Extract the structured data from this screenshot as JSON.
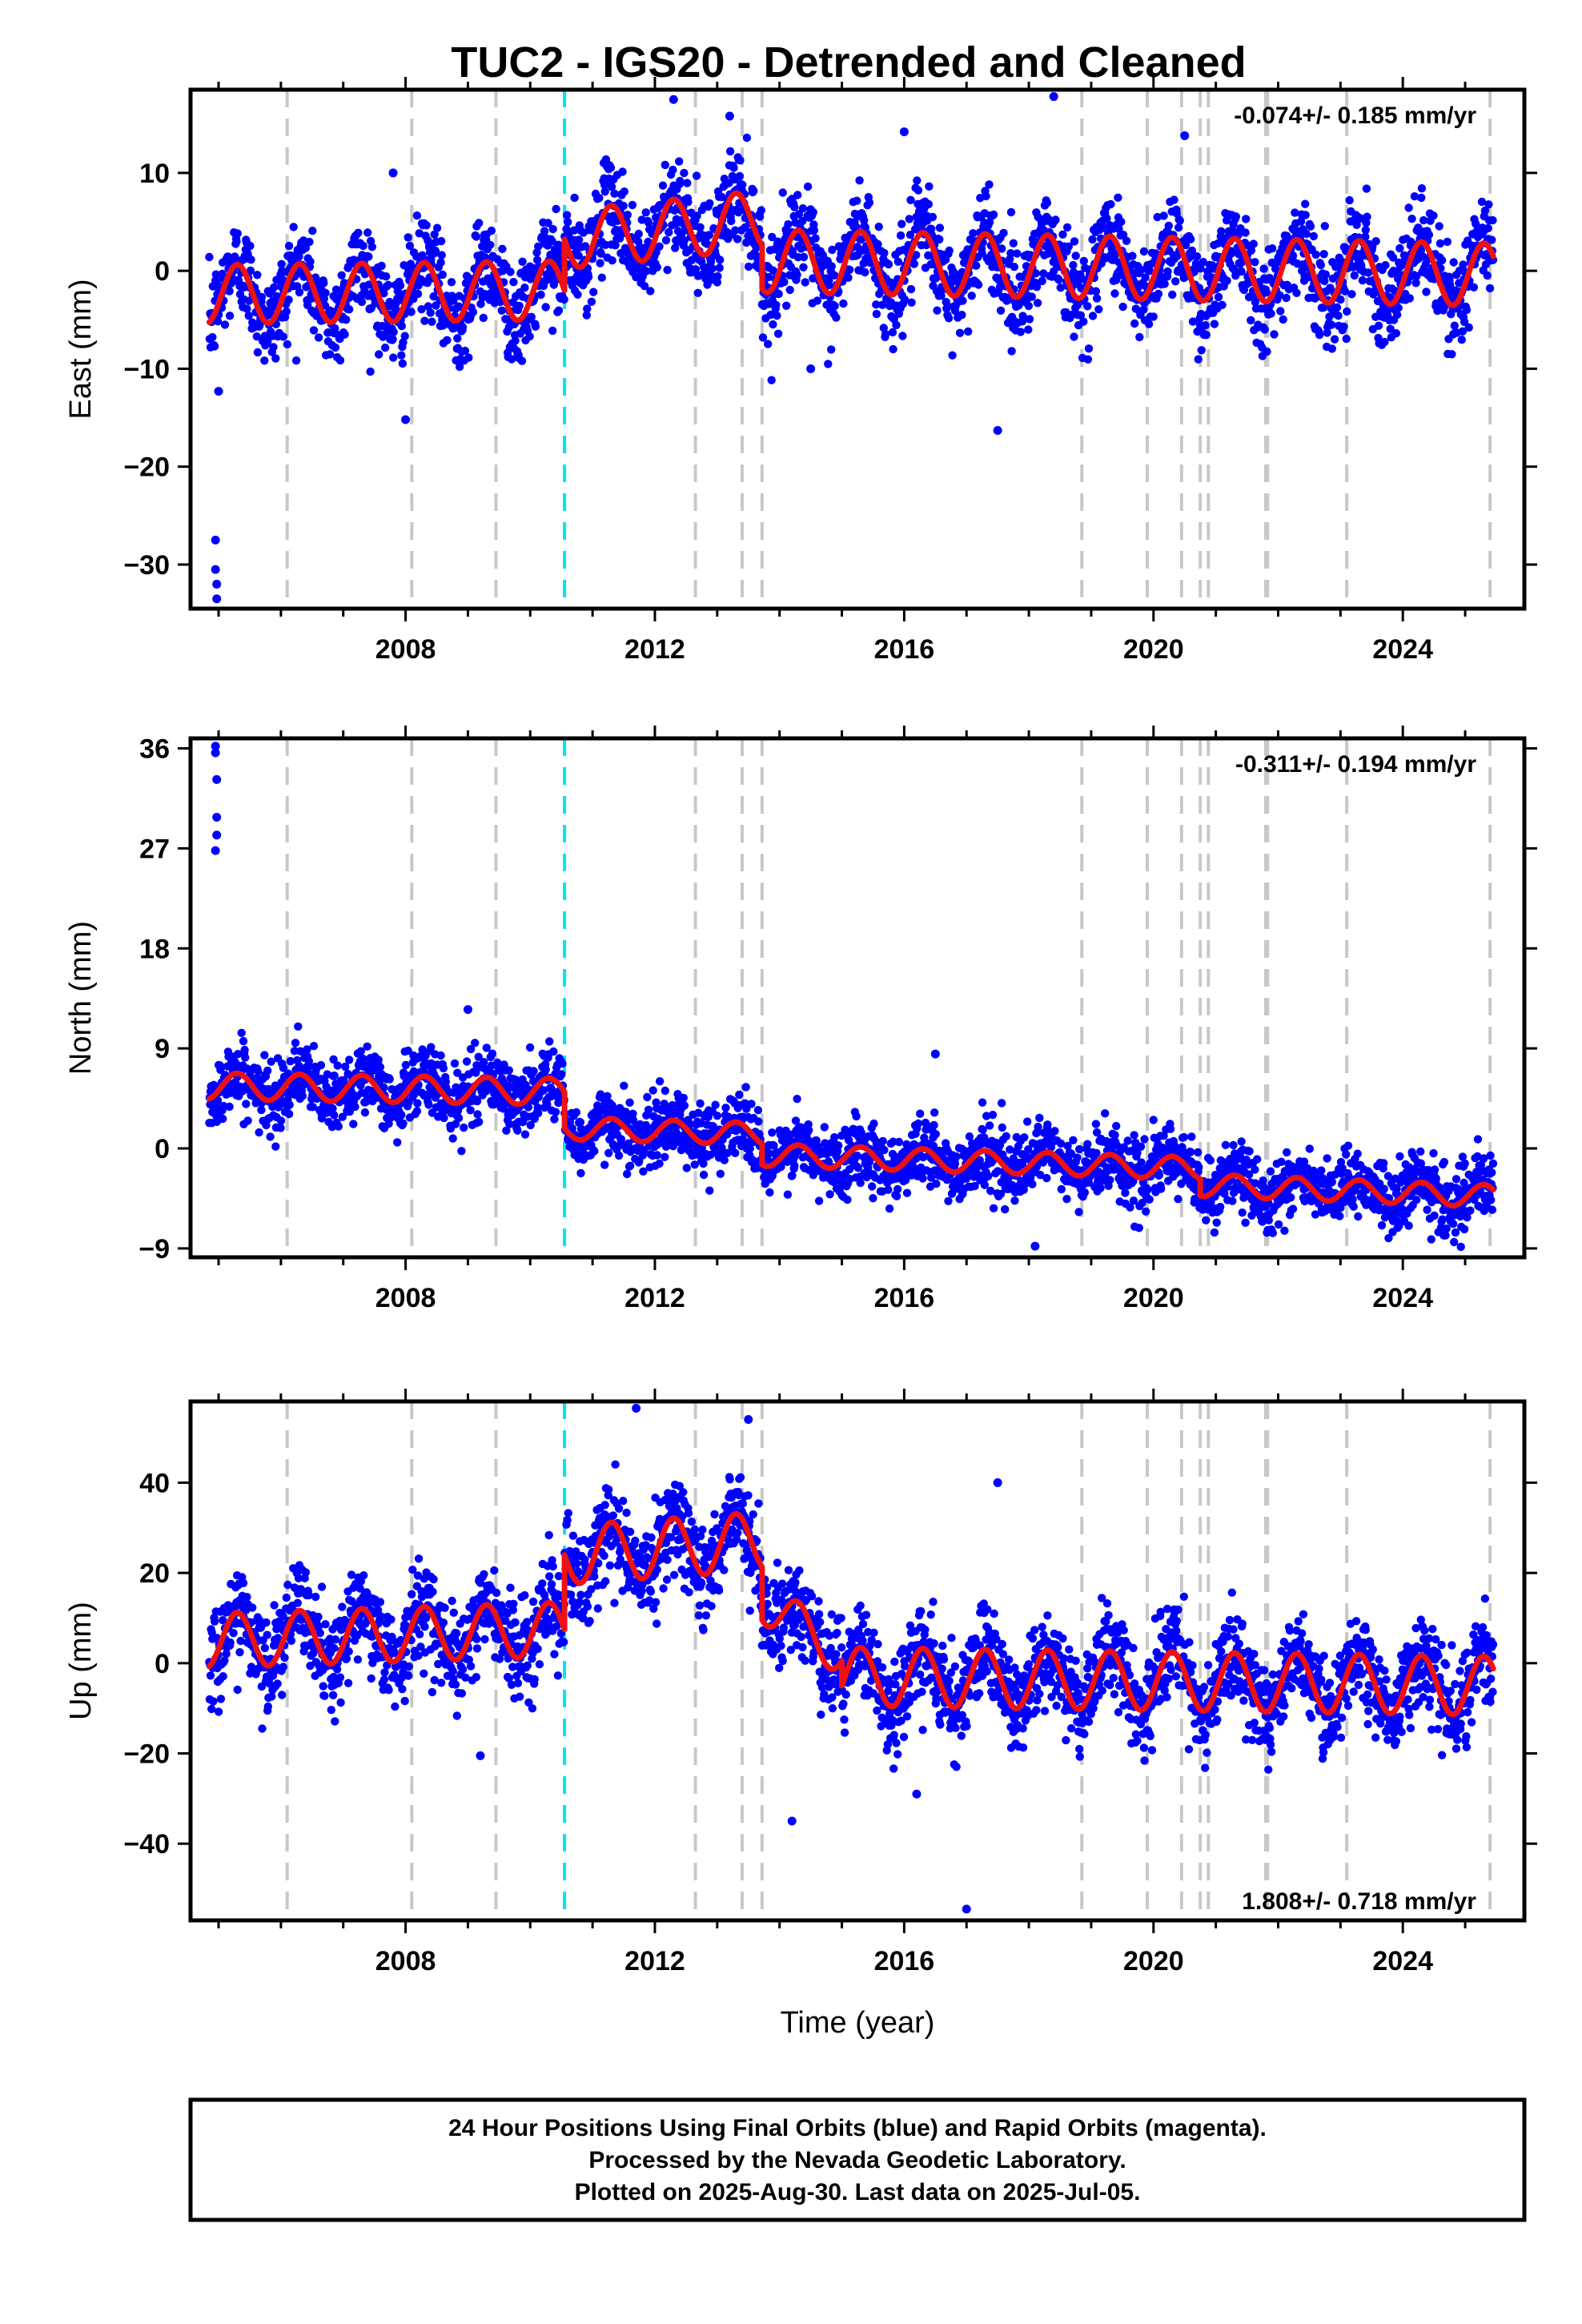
{
  "figure_title": "TUC2 - IGS20 - Detrended and Cleaned",
  "footer_lines": [
    "24 Hour Positions Using Final Orbits (blue) and Rapid Orbits (magenta).",
    "Processed by the Nevada Geodetic Laboratory.",
    "Plotted on 2025-Aug-30. Last data on 2025-Jul-05."
  ],
  "colors": {
    "final_orbits": "#0000ff",
    "model_fit": "#ee1111",
    "equipment_change_lines": "#c8c8c8",
    "earthquake_line": "#00e5ee"
  },
  "chart_data": [
    {
      "type": "scatter",
      "panel": "east",
      "ylabel": "East (mm)",
      "xlabel": "",
      "rate_label": "-0.074+/- 0.185 mm/yr",
      "xlim": [
        2004.55,
        2025.95
      ],
      "ylim": [
        -34.5,
        18.5
      ],
      "x_ticks": [
        2008,
        2012,
        2016,
        2020,
        2024
      ],
      "x_tick_labels": [
        "2008",
        "2012",
        "2016",
        "2020",
        "2024"
      ],
      "y_ticks": [
        10,
        0,
        -10,
        -20,
        -30
      ],
      "y_tick_labels": [
        "10",
        "0",
        "−10",
        "−20",
        "−30"
      ],
      "model_segments": [
        {
          "t0": 2004.85,
          "t1": 2010.55,
          "offset_start": -2.4,
          "offset_end": -2.0,
          "amplitude": 3.0
        },
        {
          "t0": 2010.55,
          "t1": 2013.72,
          "offset_start": 3.2,
          "offset_end": 5.2,
          "amplitude": 3.0
        },
        {
          "t0": 2013.72,
          "t1": 2025.45,
          "offset_start": 1.0,
          "offset_end": -0.4,
          "amplitude": 3.2
        }
      ],
      "scatter_sigma": 2.4,
      "outliers": [
        {
          "x": 2004.95,
          "y": -27.5
        },
        {
          "x": 2004.95,
          "y": -30.5
        },
        {
          "x": 2004.97,
          "y": -32.0
        },
        {
          "x": 2004.97,
          "y": -33.5
        },
        {
          "x": 2005.0,
          "y": -12.3
        },
        {
          "x": 2008.0,
          "y": -15.2
        },
        {
          "x": 2007.8,
          "y": 10.0
        },
        {
          "x": 2012.3,
          "y": 17.5
        },
        {
          "x": 2013.2,
          "y": 15.8
        },
        {
          "x": 2017.5,
          "y": -16.3
        },
        {
          "x": 2018.4,
          "y": 17.8
        },
        {
          "x": 2016.0,
          "y": 14.2
        },
        {
          "x": 2020.5,
          "y": 13.8
        },
        {
          "x": 2014.5,
          "y": -10.0
        }
      ]
    },
    {
      "type": "scatter",
      "panel": "north",
      "ylabel": "North (mm)",
      "xlabel": "",
      "rate_label": "-0.311+/- 0.194 mm/yr",
      "xlim": [
        2004.55,
        2025.95
      ],
      "ylim": [
        -9.8,
        36.9
      ],
      "x_ticks": [
        2008,
        2012,
        2016,
        2020,
        2024
      ],
      "x_tick_labels": [
        "2008",
        "2012",
        "2016",
        "2020",
        "2024"
      ],
      "y_ticks": [
        36,
        27,
        18,
        9,
        0,
        -9
      ],
      "y_tick_labels": [
        "36",
        "27",
        "18",
        "9",
        "0",
        "−9"
      ],
      "model_segments": [
        {
          "t0": 2004.85,
          "t1": 2010.55,
          "offset_start": 5.6,
          "offset_end": 5.1,
          "amplitude": 1.2
        },
        {
          "t0": 2010.55,
          "t1": 2013.72,
          "offset_start": 1.8,
          "offset_end": 1.3,
          "amplitude": 1.0
        },
        {
          "t0": 2013.72,
          "t1": 2020.75,
          "offset_start": -0.6,
          "offset_end": -1.8,
          "amplitude": 1.0
        },
        {
          "t0": 2020.75,
          "t1": 2025.45,
          "offset_start": -3.3,
          "offset_end": -4.3,
          "amplitude": 1.0
        }
      ],
      "scatter_sigma": 1.5,
      "outliers": [
        {
          "x": 2004.95,
          "y": 36.2
        },
        {
          "x": 2004.95,
          "y": 35.6
        },
        {
          "x": 2004.97,
          "y": 33.2
        },
        {
          "x": 2004.97,
          "y": 29.8
        },
        {
          "x": 2004.97,
          "y": 28.2
        },
        {
          "x": 2004.95,
          "y": 26.8
        },
        {
          "x": 2009.0,
          "y": 12.5
        },
        {
          "x": 2018.1,
          "y": -8.8
        },
        {
          "x": 2016.5,
          "y": 8.5
        }
      ]
    },
    {
      "type": "scatter",
      "panel": "up",
      "ylabel": "Up (mm)",
      "xlabel": "Time (year)",
      "rate_label": "1.808+/- 0.718 mm/yr",
      "xlim": [
        2004.55,
        2025.95
      ],
      "ylim": [
        -57.0,
        58.0
      ],
      "x_ticks": [
        2008,
        2012,
        2016,
        2020,
        2024
      ],
      "x_tick_labels": [
        "2008",
        "2012",
        "2016",
        "2020",
        "2024"
      ],
      "y_ticks": [
        40,
        20,
        0,
        -20,
        -40
      ],
      "y_tick_labels": [
        "40",
        "20",
        "0",
        "−20",
        "−40"
      ],
      "model_segments": [
        {
          "t0": 2004.85,
          "t1": 2010.55,
          "offset_start": 5.0,
          "offset_end": 7.5,
          "amplitude": 6.0
        },
        {
          "t0": 2010.55,
          "t1": 2013.72,
          "offset_start": 24.0,
          "offset_end": 27.0,
          "amplitude": 6.5
        },
        {
          "t0": 2013.72,
          "t1": 2015.0,
          "offset_start": 14.0,
          "offset_end": 2.0,
          "amplitude": 5.0
        },
        {
          "t0": 2015.0,
          "t1": 2025.45,
          "offset_start": -3.0,
          "offset_end": -5.0,
          "amplitude": 6.5
        }
      ],
      "scatter_sigma": 5.0,
      "outliers": [
        {
          "x": 2011.7,
          "y": 56.5
        },
        {
          "x": 2013.5,
          "y": 54.0
        },
        {
          "x": 2009.2,
          "y": -20.5
        },
        {
          "x": 2014.2,
          "y": -35.0
        },
        {
          "x": 2017.0,
          "y": -54.5
        },
        {
          "x": 2017.5,
          "y": 40.0
        },
        {
          "x": 2016.2,
          "y": -29.0
        }
      ]
    }
  ],
  "equipment_change_years": [
    2006.1,
    2008.1,
    2009.45,
    2012.65,
    2013.4,
    2013.72,
    2018.85,
    2019.9,
    2020.45,
    2020.75,
    2020.88,
    2021.8,
    2021.83,
    2023.1,
    2025.4
  ],
  "earthquake_year": 2010.55
}
